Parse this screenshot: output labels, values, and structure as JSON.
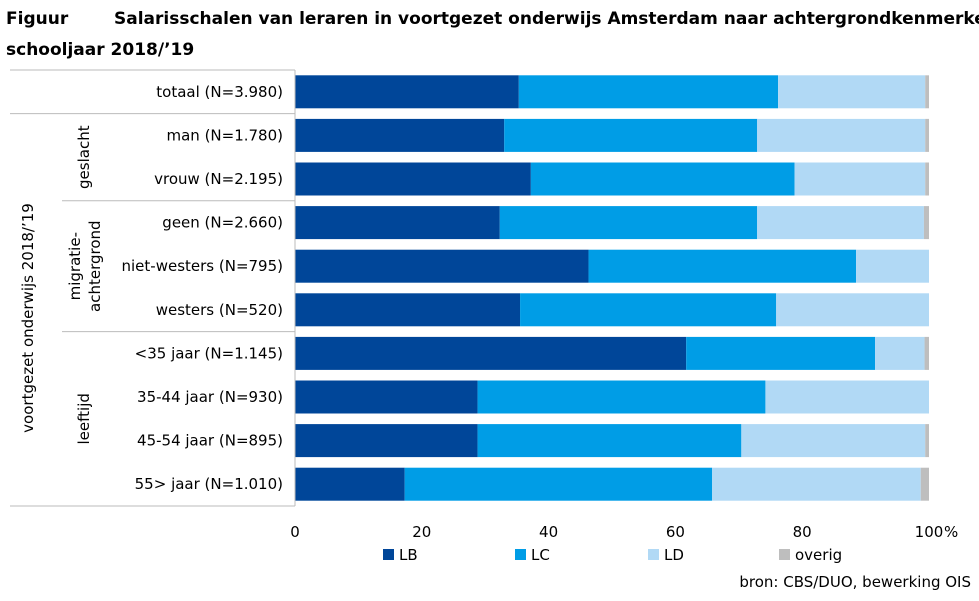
{
  "header": {
    "figure_label": "Figuur",
    "title_line1": "Salarisschalen van leraren in voortgezet onderwijs Amsterdam naar achtergrondkenmerken,",
    "title_line2": "schooljaar 2018/’19"
  },
  "chart_data": {
    "type": "bar",
    "orientation": "horizontal",
    "stacked": true,
    "categories": [
      "totaal (N=3.980)",
      "man (N=1.780)",
      "vrouw (N=2.195)",
      "geen (N=2.660)",
      "niet-westers (N=795)",
      "westers (N=520)",
      "<35 jaar (N=1.145)",
      "35-44 jaar (N=930)",
      "45-54 jaar (N=895)",
      "55> jaar (N=1.010)"
    ],
    "groups": [
      {
        "label": "",
        "rows": [
          0
        ]
      },
      {
        "label": "geslacht",
        "rows": [
          1,
          2
        ]
      },
      {
        "label": "migratie-\nachtergrond",
        "rows": [
          3,
          4,
          5
        ]
      },
      {
        "label": "leeftijd",
        "rows": [
          6,
          7,
          8,
          9
        ]
      }
    ],
    "outer_label": "voortgezet onderwijs 2018/’19",
    "series": [
      {
        "name": "LB",
        "color": "#004699",
        "values": [
          35.3,
          33.0,
          37.2,
          32.3,
          46.3,
          35.5,
          61.7,
          28.8,
          28.8,
          17.3
        ]
      },
      {
        "name": "LC",
        "color": "#009de6",
        "values": [
          40.9,
          39.9,
          41.6,
          40.6,
          42.2,
          40.4,
          29.8,
          45.4,
          41.6,
          48.5
        ]
      },
      {
        "name": "LD",
        "color": "#b1d9f5",
        "values": [
          23.2,
          26.5,
          20.6,
          26.3,
          11.5,
          24.1,
          7.8,
          25.8,
          29.0,
          32.9
        ]
      },
      {
        "name": "overig",
        "color": "#bebebe",
        "values": [
          0.6,
          0.6,
          0.6,
          0.8,
          0.0,
          0.0,
          0.7,
          0.0,
          0.6,
          1.3
        ]
      }
    ],
    "xlim": [
      0,
      100
    ],
    "xticks": [
      0,
      20,
      40,
      60,
      80,
      100
    ],
    "xunit": "%",
    "legend_position": "bottom"
  },
  "source": "bron: CBS/DUO, bewerking OIS"
}
